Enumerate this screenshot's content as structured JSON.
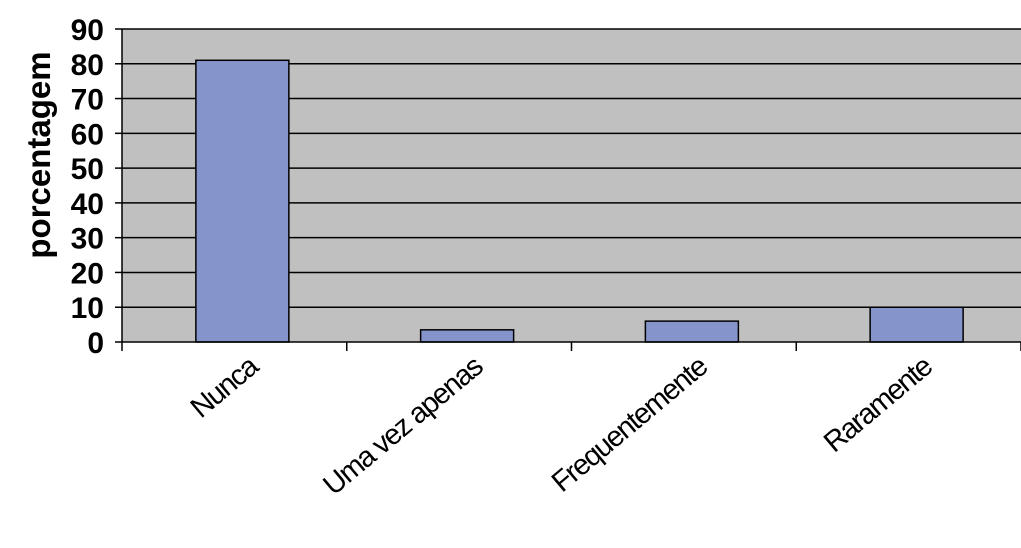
{
  "chart_data": {
    "type": "bar",
    "title": "",
    "xlabel": "",
    "ylabel": "porcentagem",
    "categories": [
      "Nunca",
      "Uma vez apenas",
      "Frequentemente",
      "Raramente"
    ],
    "values": [
      81,
      3.5,
      6,
      10
    ],
    "ylim": [
      0,
      90
    ],
    "yticks": [
      "0",
      "10",
      "20",
      "30",
      "40",
      "50",
      "60",
      "70",
      "80",
      "90"
    ],
    "grid": true,
    "legend": "none",
    "colors": {
      "bar": "#8595cc",
      "plot_background": "#c0c0c0",
      "gridline": "#000000",
      "page_background": "#ffffff"
    }
  }
}
